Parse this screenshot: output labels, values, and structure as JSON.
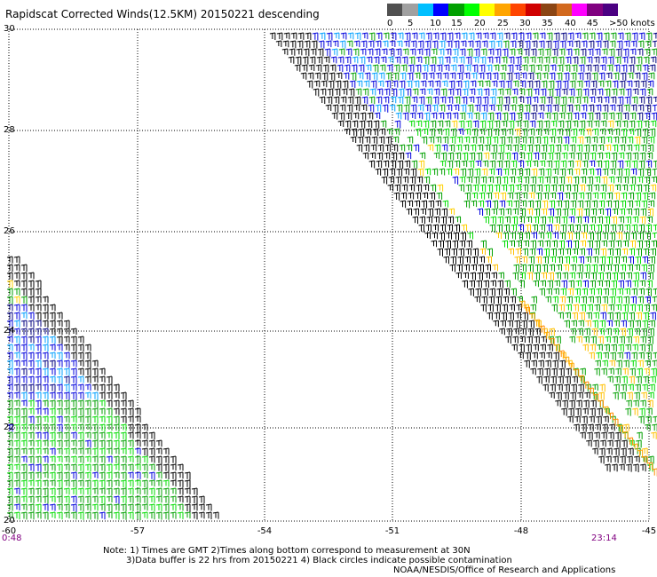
{
  "title": "Rapidscat Corrected Winds(12.5KM) 20150221 descending",
  "legend": {
    "colors": [
      "#505050",
      "#a0a0a0",
      "#00bfff",
      "#0000ff",
      "#00a000",
      "#00ff00",
      "#ffff00",
      "#ffa500",
      "#ff4500",
      "#d00000",
      "#8b4513",
      "#d2691e",
      "#ff00ff",
      "#800080",
      "#4b0082"
    ],
    "labels": [
      "0",
      "5",
      "10",
      "15",
      "20",
      "25",
      "30",
      "35",
      "40",
      "45",
      ">50 knots"
    ]
  },
  "axes": {
    "lat_ticks": [
      "30",
      "28",
      "26",
      "24",
      "22",
      "20"
    ],
    "lon_ticks": [
      "-60",
      "-57",
      "-54",
      "-51",
      "-48",
      "-45"
    ],
    "lat_range": [
      20,
      30
    ],
    "lon_range": [
      -60,
      -45
    ],
    "grid": "dotted"
  },
  "times": {
    "start": "0:48",
    "end": "23:14"
  },
  "notes": {
    "line1": "Note: 1) Times are GMT 2)Times along bottom correspond to measurement at 30N",
    "line2": "3)Data buffer is 22 hrs from 20150221 4) Black circles indicate possible contamination"
  },
  "credit": "NOAA/NESDIS/Office of Research and Applications"
}
